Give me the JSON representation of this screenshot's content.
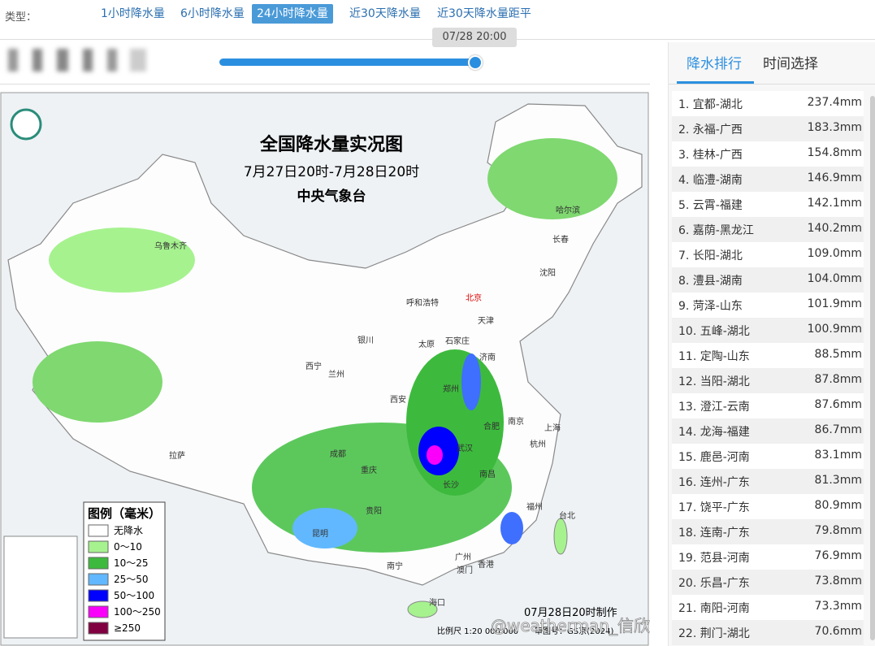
{
  "toolbar": {
    "label": "类型：",
    "tabs": [
      "1小时降水量",
      "6小时降水量",
      "24小时降水量",
      "近30天降水量",
      "近30天降水量距平"
    ],
    "active": "24小时降水量"
  },
  "slider": {
    "time": "07/28 20:00"
  },
  "map": {
    "title": "全国降水量实况图",
    "period": "7月27日20时-7月28日20时",
    "source": "中央气象台",
    "legend": {
      "title": "图例（毫米）",
      "items": [
        "无降水",
        "0～10",
        "10～25",
        "25～50",
        "50～100",
        "100～250",
        "≥250"
      ]
    },
    "made": "07月28日20时制作",
    "scale": "比例尺 1:20 000 000",
    "approval": "审图号：GS京(2024)",
    "cities": [
      "乌鲁木齐",
      "哈尔滨",
      "长春",
      "沈阳",
      "北京",
      "呼和浩特",
      "天津",
      "银川",
      "石家庄",
      "太原",
      "济南",
      "西宁",
      "兰州",
      "郑州",
      "西安",
      "合肥",
      "南京",
      "上海",
      "拉萨",
      "成都",
      "武汉",
      "杭州",
      "重庆",
      "长沙",
      "南昌",
      "贵阳",
      "福州",
      "台北",
      "昆明",
      "南宁",
      "广州",
      "香港",
      "澳门",
      "海口"
    ]
  },
  "panel": {
    "tabs": [
      "降水排行",
      "时间选择"
    ],
    "rows": [
      [
        "1. 宜都-湖北",
        "237.4mm"
      ],
      [
        "2. 永福-广西",
        "183.3mm"
      ],
      [
        "3. 桂林-广西",
        "154.8mm"
      ],
      [
        "4. 临澧-湖南",
        "146.9mm"
      ],
      [
        "5. 云霄-福建",
        "142.1mm"
      ],
      [
        "6. 嘉荫-黑龙江",
        "140.2mm"
      ],
      [
        "7. 长阳-湖北",
        "109.0mm"
      ],
      [
        "8. 澧县-湖南",
        "104.0mm"
      ],
      [
        "9. 菏泽-山东",
        "101.9mm"
      ],
      [
        "10. 五峰-湖北",
        "100.9mm"
      ],
      [
        "11. 定陶-山东",
        "88.5mm"
      ],
      [
        "12. 当阳-湖北",
        "87.8mm"
      ],
      [
        "13. 澄江-云南",
        "87.6mm"
      ],
      [
        "14. 龙海-福建",
        "86.7mm"
      ],
      [
        "15. 鹿邑-河南",
        "83.1mm"
      ],
      [
        "16. 连州-广东",
        "81.3mm"
      ],
      [
        "17. 饶平-广东",
        "80.9mm"
      ],
      [
        "18. 连南-广东",
        "79.8mm"
      ],
      [
        "19. 范县-河南",
        "76.9mm"
      ],
      [
        "20. 乐昌-广东",
        "73.8mm"
      ],
      [
        "21. 南阳-河南",
        "73.3mm"
      ],
      [
        "22. 荆门-湖北",
        "70.6mm"
      ]
    ]
  },
  "watermark": "@weatherman_信欣"
}
